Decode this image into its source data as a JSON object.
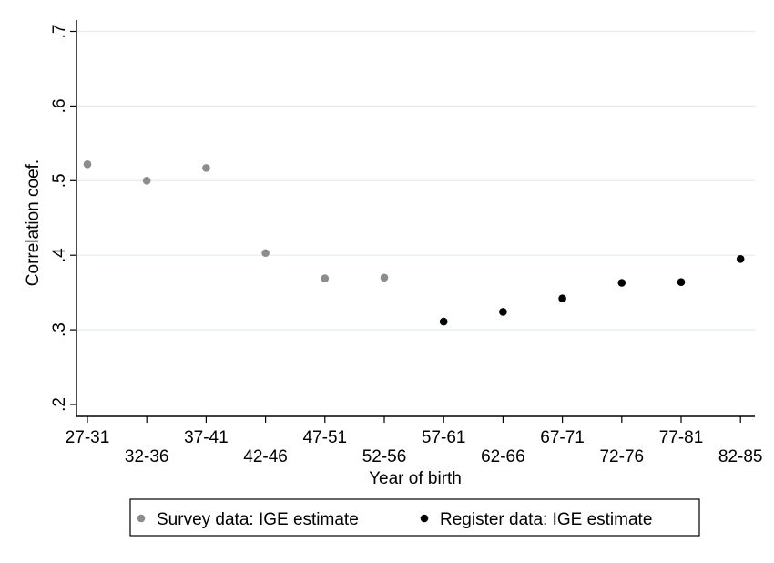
{
  "chart_data": {
    "type": "scatter",
    "xlabel": "Year of birth",
    "ylabel": "Correlation coef.",
    "categories": [
      "27-31",
      "32-36",
      "37-41",
      "42-46",
      "47-51",
      "52-56",
      "57-61",
      "62-66",
      "67-71",
      "72-76",
      "77-81",
      "82-85"
    ],
    "ylim": [
      0.2,
      0.7
    ],
    "yticks": [
      0.2,
      0.3,
      0.4,
      0.5,
      0.6,
      0.7
    ],
    "ytick_labels": [
      ".2",
      ".3",
      ".4",
      ".5",
      ".6",
      ".7"
    ],
    "grid": true,
    "legend_position": "bottom",
    "series": [
      {
        "name": "Survey data: IGE estimate",
        "color": "#8c8c8c",
        "points": [
          {
            "x": "27-31",
            "y": 0.522
          },
          {
            "x": "32-36",
            "y": 0.5
          },
          {
            "x": "37-41",
            "y": 0.517
          },
          {
            "x": "42-46",
            "y": 0.403
          },
          {
            "x": "47-51",
            "y": 0.369
          },
          {
            "x": "52-56",
            "y": 0.37
          }
        ]
      },
      {
        "name": "Register data: IGE estimate",
        "color": "#000000",
        "points": [
          {
            "x": "57-61",
            "y": 0.311
          },
          {
            "x": "62-66",
            "y": 0.324
          },
          {
            "x": "67-71",
            "y": 0.342
          },
          {
            "x": "72-76",
            "y": 0.363
          },
          {
            "x": "77-81",
            "y": 0.364
          },
          {
            "x": "82-85",
            "y": 0.395
          }
        ]
      }
    ]
  }
}
